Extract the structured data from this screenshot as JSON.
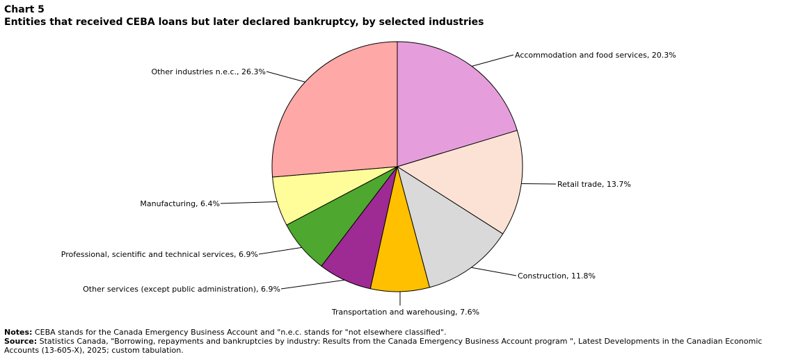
{
  "header": {
    "chart_label": "Chart 5",
    "title": "Entities that received CEBA loans but later declared bankruptcy, by selected industries"
  },
  "chart_data": {
    "type": "pie",
    "title": "Entities that received CEBA loans but later declared bankruptcy, by selected industries",
    "unit": "%",
    "slices": [
      {
        "label": "Accommodation and food services, 20.3%",
        "category": "Accommodation and food services",
        "value": 20.3,
        "color": "#e59edb"
      },
      {
        "label": "Retail trade, 13.7%",
        "category": "Retail trade",
        "value": 13.7,
        "color": "#fbe2d5"
      },
      {
        "label": "Construction, 11.8%",
        "category": "Construction",
        "value": 11.8,
        "color": "#d9d9d9"
      },
      {
        "label": "Transportation and warehousing, 7.6%",
        "category": "Transportation and warehousing",
        "value": 7.6,
        "color": "#ffc000"
      },
      {
        "label": "Other services (except public administration), 6.9%",
        "category": "Other services (except public administration)",
        "value": 6.9,
        "color": "#9e2a93"
      },
      {
        "label": "Professional, scientific and technical services, 6.9%",
        "category": "Professional, scientific and technical services",
        "value": 6.9,
        "color": "#4ea72e"
      },
      {
        "label": "Manufacturing, 6.4%",
        "category": "Manufacturing",
        "value": 6.4,
        "color": "#fffd9a"
      },
      {
        "label": "Other industries n.e.c., 26.3%",
        "category": "Other industries n.e.c.",
        "value": 26.3,
        "color": "#ffa8a8"
      }
    ]
  },
  "footnotes": {
    "notes_label": "Notes:",
    "notes_text": " CEBA stands for the Canada Emergency Business Account and \"n.e.c. stands for \"not elsewhere classified\".",
    "source_label": "Source:",
    "source_text": " Statistics Canada, \"Borrowing, repayments and bankruptcies by industry: Results from the Canada Emergency Business Account program \", Latest Developments in the Canadian Economic Accounts (13-605-X), 2025; custom tabulation."
  }
}
